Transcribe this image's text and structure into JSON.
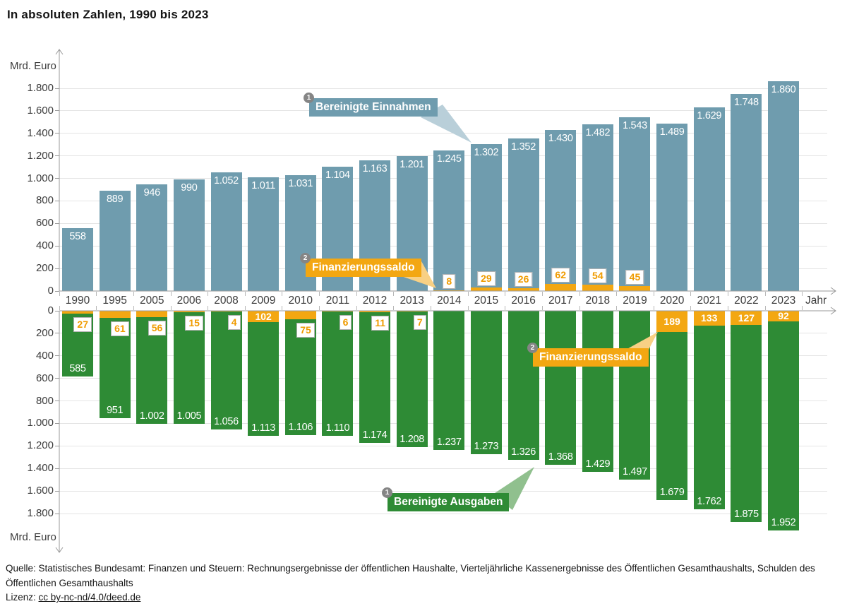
{
  "title": "In absoluten Zahlen, 1990 bis 2023",
  "axis": {
    "unit_label": "Mrd. Euro",
    "x_label": "Jahr",
    "tick_labels": [
      "0",
      "200",
      "400",
      "600",
      "800",
      "1.000",
      "1.200",
      "1.400",
      "1.600",
      "1.800"
    ]
  },
  "legend": {
    "einnahmen": {
      "badge": "1",
      "label": "Bereinigte Einnahmen"
    },
    "ausgaben": {
      "badge": "1",
      "label": "Bereinigte Ausgaben"
    },
    "saldo": {
      "badge": "2",
      "label": "Finanzierungssaldo"
    }
  },
  "colors": {
    "revenue": "#6f9cae",
    "expenditure": "#2e8b35",
    "saldo": "#f3a712",
    "revenue_light": "#b9cfd9",
    "expenditure_light": "#90c08e",
    "saldo_light": "#f8d084",
    "saldo_text": "#ef9b00",
    "axis": "#9a9a9a",
    "grid": "#e4e4e4"
  },
  "footer": {
    "source": "Quelle: Statistisches Bundesamt: Finanzen und Steuern: Rechnungsergebnisse der öffentlichen Haushalte, Vierteljährliche Kassenergebnisse des Öffentlichen Gesamthaushalts, Schulden des Öffentlichen Gesamthaushalts",
    "license_prefix": "Lizenz: ",
    "license_link": "cc by-nc-nd/4.0/deed.de"
  },
  "chart_data": {
    "type": "bar",
    "title": "In absoluten Zahlen, 1990 bis 2023",
    "unit": "Mrd. Euro",
    "x_axis_label": "Jahr",
    "ylim": [
      0,
      1800
    ],
    "tick_step": 200,
    "grid": true,
    "layout": "mirrored: Einnahmen upward, Ausgaben downward, Finanzierungssaldo stacked at the zero line (surplus above, deficit below)",
    "categories": [
      "1990",
      "1995",
      "2005",
      "2006",
      "2008",
      "2009",
      "2010",
      "2011",
      "2012",
      "2013",
      "2014",
      "2015",
      "2016",
      "2017",
      "2018",
      "2019",
      "2020",
      "2021",
      "2022",
      "2023"
    ],
    "series": [
      {
        "id": "einnahmen",
        "name": "Bereinigte Einnahmen",
        "direction": "up",
        "color": "#6f9cae",
        "values": [
          558,
          889,
          946,
          990,
          1052,
          1011,
          1031,
          1104,
          1163,
          1201,
          1245,
          1302,
          1352,
          1430,
          1482,
          1543,
          1489,
          1629,
          1748,
          1860
        ],
        "labels": [
          "558",
          "889",
          "946",
          "990",
          "1.052",
          "1.011",
          "1.031",
          "1.104",
          "1.163",
          "1.201",
          "1.245",
          "1.302",
          "1.352",
          "1.430",
          "1.482",
          "1.543",
          "1.489",
          "1.629",
          "1.748",
          "1.860"
        ]
      },
      {
        "id": "ausgaben",
        "name": "Bereinigte Ausgaben",
        "direction": "down",
        "color": "#2e8b35",
        "values": [
          585,
          951,
          1002,
          1005,
          1056,
          1113,
          1106,
          1110,
          1174,
          1208,
          1237,
          1273,
          1326,
          1368,
          1429,
          1497,
          1679,
          1762,
          1875,
          1952
        ],
        "labels": [
          "585",
          "951",
          "1.002",
          "1.005",
          "1.056",
          "1.113",
          "1.106",
          "1.110",
          "1.174",
          "1.208",
          "1.237",
          "1.273",
          "1.326",
          "1.368",
          "1.429",
          "1.497",
          "1.679",
          "1.762",
          "1.875",
          "1.952"
        ]
      },
      {
        "id": "saldo",
        "name": "Finanzierungssaldo",
        "direction": "stacked-at-zero",
        "color": "#f3a712",
        "values": [
          -27,
          -61,
          -56,
          -15,
          -4,
          -102,
          -75,
          -6,
          -11,
          -7,
          8,
          29,
          26,
          62,
          54,
          45,
          -189,
          -133,
          -127,
          -92
        ],
        "labels": [
          "27",
          "61",
          "56",
          "15",
          "4",
          "102",
          "75",
          "6",
          "11",
          "7",
          "8",
          "29",
          "26",
          "62",
          "54",
          "45",
          "189",
          "133",
          "127",
          "92"
        ]
      }
    ]
  }
}
